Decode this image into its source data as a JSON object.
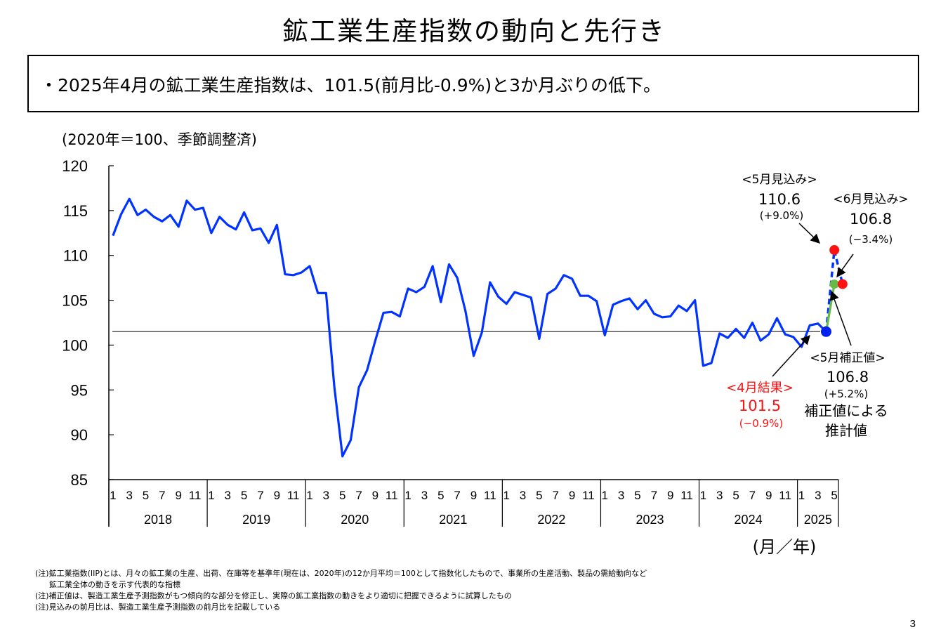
{
  "title": "鉱工業生産指数の動向と先行き",
  "summary": "・2025年4月の鉱工業生産指数は、101.5(前月比-0.9%)と3か月ぶりの低下。",
  "footnotes": [
    "(注)鉱工業指数(IIP)とは、月々の鉱工業の生産、出荷、在庫等を基準年(現在は、2020年)の12か月平均＝100として指数化したもので、事業所の生産活動、製品の需給動向など",
    "鉱工業全体の動きを示す代表的な指標",
    "(注)補正値は、製造工業生産予測指数がもつ傾向的な部分を修正し、実際の鉱工業指数の動きをより適切に把握できるように試算したもの",
    "(注)見込みの前月比は、製造工業生産予測指数の前月比を記載している"
  ],
  "page_number": "3",
  "chart_data": {
    "type": "line",
    "unit_label": "(2020年＝100、季節調整済)",
    "xlabel": "(月／年)",
    "ylim": [
      85,
      120
    ],
    "yticks": [
      85,
      90,
      95,
      100,
      105,
      110,
      115,
      120
    ],
    "month_ticks": [
      "1",
      "3",
      "5",
      "7",
      "9",
      "11"
    ],
    "years": [
      "2018",
      "2019",
      "2020",
      "2021",
      "2022",
      "2023",
      "2024",
      "2025"
    ],
    "reference_line": 101.5,
    "colors": {
      "actual": "#0033FF",
      "forecast": "#0033FF",
      "corrected": "#66BB44",
      "point": "#FF1111",
      "latest": "#0022EE",
      "ref": "#555555"
    },
    "series": [
      {
        "values": [
          112.2,
          114.6,
          116.3,
          114.5,
          115.1,
          114.3,
          113.8,
          114.5,
          113.2,
          116.1,
          115.1,
          115.3,
          112.5,
          114.3,
          113.4,
          112.9,
          114.8,
          112.8,
          113.0,
          111.4,
          113.4,
          107.9,
          107.8,
          108.1,
          108.8,
          105.8,
          105.8,
          95.4,
          87.6,
          89.4,
          95.3,
          97.2,
          100.5,
          103.6,
          103.7,
          103.2,
          106.3,
          105.9,
          106.5,
          108.8,
          104.8,
          109.0,
          107.5,
          103.8,
          98.8,
          101.4,
          107.0,
          105.4,
          104.6,
          105.9,
          105.6,
          105.3,
          100.7,
          105.7,
          106.3,
          107.8,
          107.4,
          105.5,
          105.5,
          104.9,
          101.1,
          104.5,
          104.9,
          105.2,
          104.0,
          105.0,
          103.5,
          103.1,
          103.2,
          104.4,
          103.8,
          105.0,
          97.7,
          98.0,
          101.3,
          100.8,
          101.8,
          100.8,
          102.5,
          100.5,
          101.2,
          103.0,
          101.2,
          100.9,
          99.8,
          102.2,
          102.4,
          101.5
        ]
      }
    ],
    "forecast_series": {
      "values": [
        101.5,
        110.6,
        106.8
      ]
    },
    "corrected_series": {
      "values": [
        101.5,
        106.8
      ]
    },
    "annotations": {
      "april": {
        "label": "<4月結果>",
        "value": "101.5",
        "change": "(−0.9%)"
      },
      "may_forecast": {
        "label": "<5月見込み>",
        "value": "110.6",
        "change": "(+9.0%)"
      },
      "june_forecast": {
        "label": "<6月見込み>",
        "value": "106.8",
        "change": "(−3.4%)"
      },
      "may_corrected": {
        "label": "<5月補正値>",
        "value": "106.8",
        "change": "(+5.2%)",
        "note1": "補正値による",
        "note2": "推計値"
      }
    }
  }
}
